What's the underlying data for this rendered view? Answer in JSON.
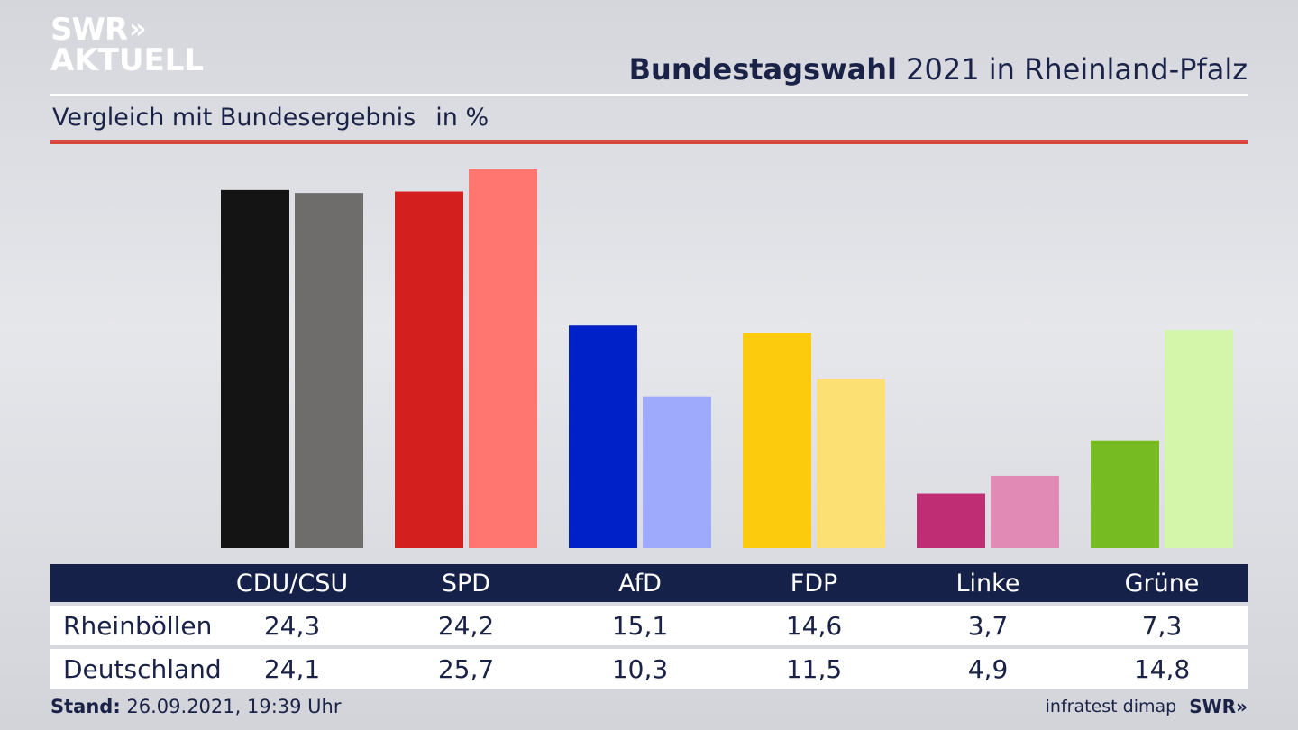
{
  "brand": {
    "logo_line1": "SWR",
    "logo_arrows": "»",
    "logo_line2": "AKTUELL"
  },
  "header": {
    "title_bold": "Bundestagswahl",
    "title_rest": " 2021 in Rheinland-Pfalz"
  },
  "subtitle": {
    "text": "Vergleich mit Bundesergebnis",
    "unit": "in %"
  },
  "colors": {
    "accent_rule": "#d4463a",
    "table_header_bg": "#162149"
  },
  "chart_data": {
    "type": "bar",
    "categories": [
      "CDU/CSU",
      "SPD",
      "AfD",
      "FDP",
      "Linke",
      "Grüne"
    ],
    "series": [
      {
        "name": "Rheinböllen",
        "values": [
          24.3,
          24.2,
          15.1,
          14.6,
          3.7,
          7.3
        ],
        "colors": [
          "#141414",
          "#d41f1f",
          "#0020c8",
          "#fdcb0e",
          "#bf2d75",
          "#76bb21"
        ]
      },
      {
        "name": "Deutschland",
        "values": [
          24.1,
          25.7,
          10.3,
          11.5,
          4.9,
          14.8
        ],
        "colors": [
          "#6e6d6b",
          "#ff7570",
          "#9eabfd",
          "#fde074",
          "#e08ab5",
          "#d3f6ab"
        ]
      }
    ],
    "value_labels": [
      [
        "24,3",
        "24,2",
        "15,1",
        "14,6",
        "3,7",
        "7,3"
      ],
      [
        "24,1",
        "25,7",
        "10,3",
        "11,5",
        "4,9",
        "14,8"
      ]
    ],
    "ylim": [
      0,
      25.7
    ]
  },
  "table": {
    "row_labels": [
      "Rheinböllen",
      "Deutschland"
    ]
  },
  "footer": {
    "stand_label": "Stand:",
    "stand_value": " 26.09.2021, 19:39 Uhr",
    "source": "infratest dimap",
    "brand_small": "SWR»"
  }
}
